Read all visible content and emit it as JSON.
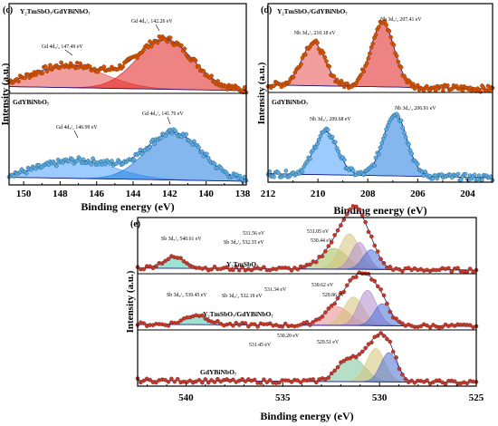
{
  "panel_c": {
    "label": "(c)",
    "sample_top": "Y₂TmSbO₇/GdYBiNbO₇",
    "sample_bottom": "GdYBiNbO₇",
    "x_label": "Binding energy (eV)",
    "y_label": "Intensity (a.u.)",
    "x_ticks": [
      "150",
      "148",
      "146",
      "144",
      "142",
      "140",
      "138"
    ],
    "annotations_top": [
      "Gd 4d₃/₂ 147.49 eV",
      "Gd 4d₅/₂ 142.26 eV"
    ],
    "annotations_bottom": [
      "Gd 4d₃/₂ 146.99 eV",
      "Gd 4d₅/₂ 141.76 eV"
    ]
  },
  "panel_d": {
    "label": "(d)",
    "sample_top": "Y₂TmSbO₇/GdYBiNbO₇",
    "sample_bottom": "GdYBiNbO₇",
    "x_label": "Binding energy (eV)",
    "y_label": "Intensity (a.u.)",
    "x_ticks": [
      "212",
      "210",
      "208",
      "206",
      "204"
    ],
    "annotations_top": [
      "Nb 3d₃/₂ 210.18 eV",
      "Nb 3d₅/₂ 207.41 eV"
    ],
    "annotations_bottom": [
      "Nb 3d₃/₂ 209.68 eV",
      "Nb 3d₅/₂ 206.91 eV"
    ]
  },
  "panel_e": {
    "label": "(e)",
    "sample_top": "Y₂TmSbO₇",
    "sample_mid": "Y₂TmSbO₇/GdYBiNbO₇",
    "sample_bottom": "GdYBiNbO₇",
    "x_label": "Binding energy (eV)",
    "y_label": "Intensity (a.u.)",
    "x_ticks": [
      "540",
      "535",
      "530",
      "525"
    ],
    "annotations_top": [
      "Sb 3d₅/₂ 540.61 eV",
      "531.56 eV",
      "Sb 3d₃/₂ 532.35 eV",
      "531.05 eV",
      "530.44 eV"
    ],
    "annotations_mid": [
      "531.34 eV",
      "530.62 eV",
      "Sb 3d₅/₂ 539.45 eV",
      "Sb 3d₃/₂ 532.19 eV",
      "529.86 eV"
    ],
    "annotations_bottom": [
      "531.45 eV",
      "530.20 eV",
      "529.51 eV"
    ]
  },
  "chart_data": [
    {
      "type": "line",
      "panel": "c",
      "xlim": [
        150.8,
        137.8
      ],
      "xlabel": "Binding energy (eV)",
      "ylabel": "Intensity (a.u.)",
      "subplots": [
        {
          "sample": "Y₂TmSbO₇/GdYBiNbO₇",
          "background": [
            [
              150.8,
              0.05
            ],
            [
              137.8,
              0.0
            ]
          ],
          "peaks": [
            {
              "name": "Gd 4d₃/₂",
              "center": 147.49,
              "height": 0.28,
              "fwhm": 4.6,
              "color": "#e94f4f"
            },
            {
              "name": "Gd 4d₅/₂",
              "center": 142.26,
              "height": 0.62,
              "fwhm": 3.6,
              "color": "#e01e1e"
            }
          ]
        },
        {
          "sample": "GdYBiNbO₇",
          "background": [
            [
              150.8,
              0.05
            ],
            [
              137.8,
              0.0
            ]
          ],
          "peaks": [
            {
              "name": "Gd 4d₃/₂",
              "center": 146.99,
              "height": 0.22,
              "fwhm": 4.8,
              "color": "#4aa3ff"
            },
            {
              "name": "Gd 4d₅/₂",
              "center": 141.76,
              "height": 0.58,
              "fwhm": 3.6,
              "color": "#1e7be0"
            }
          ]
        }
      ]
    },
    {
      "type": "line",
      "panel": "d",
      "xlim": [
        212,
        203
      ],
      "xlabel": "Binding energy (eV)",
      "ylabel": "Intensity (a.u.)",
      "subplots": [
        {
          "sample": "Y₂TmSbO₇/GdYBiNbO₇",
          "background": [
            [
              212,
              0.05
            ],
            [
              203,
              0.0
            ]
          ],
          "peaks": [
            {
              "name": "Nb 3d₃/₂",
              "center": 210.18,
              "height": 0.55,
              "fwhm": 1.1,
              "color": "#e94f4f"
            },
            {
              "name": "Nb 3d₅/₂",
              "center": 207.41,
              "height": 0.82,
              "fwhm": 1.1,
              "color": "#e01e1e"
            }
          ]
        },
        {
          "sample": "GdYBiNbO₇",
          "background": [
            [
              212,
              0.05
            ],
            [
              203,
              0.0
            ]
          ],
          "peaks": [
            {
              "name": "Nb 3d₃/₂",
              "center": 209.68,
              "height": 0.55,
              "fwhm": 1.1,
              "color": "#4aa3ff"
            },
            {
              "name": "Nb 3d₅/₂",
              "center": 206.91,
              "height": 0.8,
              "fwhm": 1.1,
              "color": "#1e7be0"
            }
          ]
        }
      ]
    },
    {
      "type": "line",
      "panel": "e",
      "xlim": [
        542.5,
        525
      ],
      "xlabel": "Binding energy (eV)",
      "ylabel": "Intensity (a.u.)",
      "subplots": [
        {
          "sample": "Y₂TmSbO₇",
          "background": [
            [
              542.5,
              0.06
            ],
            [
              525,
              0.02
            ]
          ],
          "peaks": [
            {
              "name": "Sb 3d₅/₂",
              "center": 540.61,
              "height": 0.22,
              "fwhm": 1.4,
              "color": "#48c9b0"
            },
            {
              "name": "Sb 3d₃/₂",
              "center": 532.35,
              "height": 0.42,
              "fwhm": 1.6,
              "color": "#9bbf5a"
            },
            {
              "name": "531.56 eV",
              "center": 531.56,
              "height": 0.72,
              "fwhm": 1.2,
              "color": "#d6c27a"
            },
            {
              "name": "531.05 eV",
              "center": 531.05,
              "height": 0.55,
              "fwhm": 1.0,
              "color": "#b18acb"
            },
            {
              "name": "530.44 eV",
              "center": 530.44,
              "height": 0.4,
              "fwhm": 1.0,
              "color": "#4a6fd6"
            }
          ]
        },
        {
          "sample": "Y₂TmSbO₇/GdYBiNbO₇",
          "background": [
            [
              542.5,
              0.06
            ],
            [
              525,
              0.02
            ]
          ],
          "peaks": [
            {
              "name": "Sb 3d₅/₂",
              "center": 539.45,
              "height": 0.2,
              "fwhm": 1.4,
              "color": "#48c9b0"
            },
            {
              "name": "Sb 3d₃/₂",
              "center": 532.19,
              "height": 0.38,
              "fwhm": 1.6,
              "color": "#e58a8a"
            },
            {
              "name": "531.34 eV",
              "center": 531.34,
              "height": 0.58,
              "fwhm": 1.2,
              "color": "#d6c27a"
            },
            {
              "name": "530.62 eV",
              "center": 530.62,
              "height": 0.72,
              "fwhm": 1.1,
              "color": "#b18acb"
            },
            {
              "name": "529.86 eV",
              "center": 529.86,
              "height": 0.45,
              "fwhm": 1.0,
              "color": "#4a6fd6"
            }
          ]
        },
        {
          "sample": "GdYBiNbO₇",
          "background": [
            [
              542.5,
              0.06
            ],
            [
              525,
              0.02
            ]
          ],
          "peaks": [
            {
              "name": "531.45 eV",
              "center": 531.45,
              "height": 0.5,
              "fwhm": 1.6,
              "color": "#7cc49a"
            },
            {
              "name": "530.20 eV",
              "center": 530.2,
              "height": 0.68,
              "fwhm": 1.1,
              "color": "#d6c27a"
            },
            {
              "name": "529.51 eV",
              "center": 529.51,
              "height": 0.6,
              "fwhm": 1.0,
              "color": "#4a6fd6"
            }
          ]
        }
      ]
    }
  ]
}
